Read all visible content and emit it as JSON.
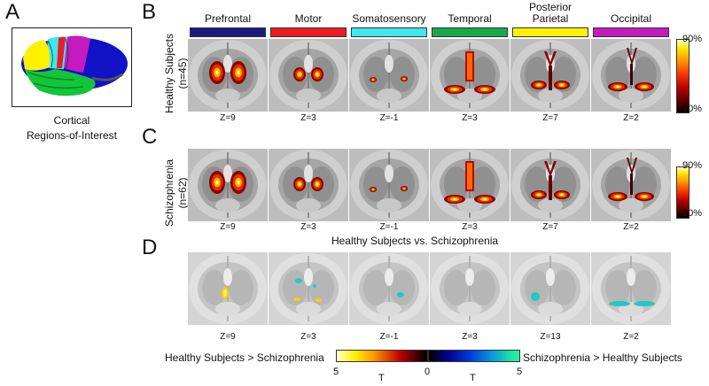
{
  "panels": {
    "A": "A",
    "B": "B",
    "C": "C",
    "D": "D"
  },
  "caption": [
    "Cortical",
    "Regions-of-Interest"
  ],
  "regions": [
    {
      "name": "Prefrontal",
      "color": "#1b1d7e"
    },
    {
      "name": "Motor",
      "color": "#ed1c24"
    },
    {
      "name": "Somatosensory",
      "color": "#3ee8ee"
    },
    {
      "name": "Temporal",
      "color": "#17a84b"
    },
    {
      "name": "Posterior Parietal",
      "color": "#fff200"
    },
    {
      "name": "Occipital",
      "color": "#c31bc0"
    }
  ],
  "rows": {
    "healthy": {
      "label1": "Healthy Subjects",
      "label2": "(n=45)"
    },
    "schizo": {
      "label1": "Schizophrenia",
      "label2": "(n=62)"
    }
  },
  "z_healthy": [
    "Z=9",
    "Z=3",
    "Z=-1",
    "Z=3",
    "Z=7",
    "Z=2"
  ],
  "z_schizo": [
    "Z=9",
    "Z=3",
    "Z=-1",
    "Z=3",
    "Z=7",
    "Z=2"
  ],
  "z_diff": [
    "Z=9",
    "Z=3",
    "Z=-1",
    "Z=3",
    "Z=13",
    "Z=2"
  ],
  "colorbar_pct": {
    "top": "90%",
    "bottom": "10%"
  },
  "comparison_title": "Healthy Subjects vs. Schizophrenia",
  "diff_colorbar": {
    "left_label": "Healthy Subjects > Schizophrenia",
    "right_label": "Schizophrenia > Healthy Subjects",
    "tick_left": "5",
    "tick_mid": "0",
    "tick_right": "5",
    "t_left": "T",
    "t_right": "T"
  }
}
